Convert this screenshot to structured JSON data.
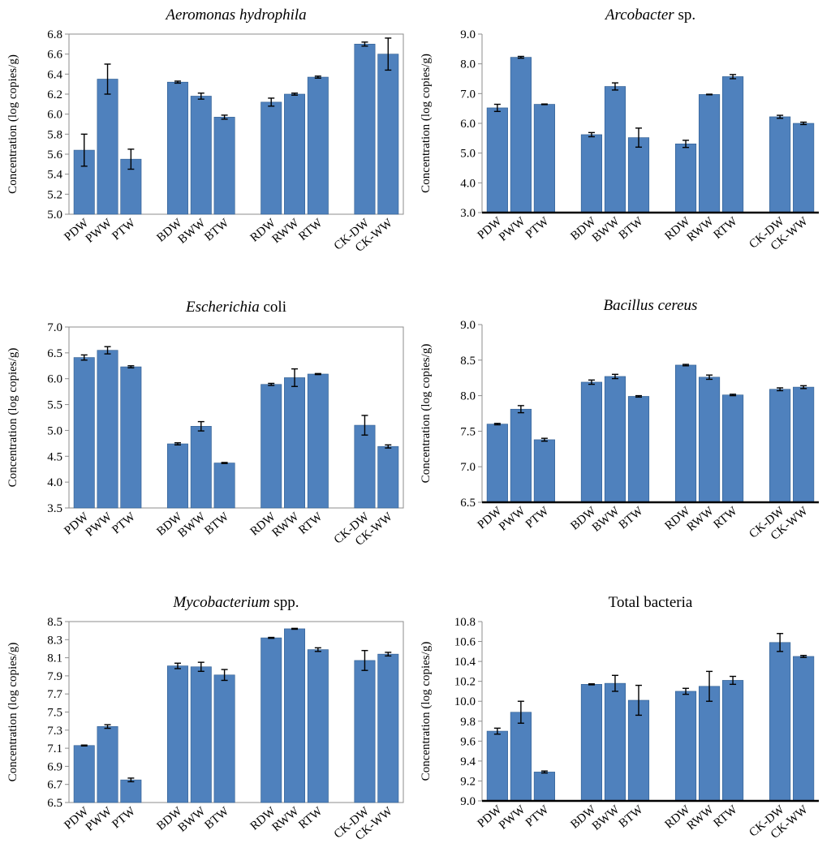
{
  "colors": {
    "bar": "#4f81bd",
    "bar_outline": "#2e5c8f",
    "axis": "#000000",
    "frame": "#8c8c8c"
  },
  "y_axis_label": "Concentration (log copies/g)",
  "chart_data": [
    {
      "type": "bar",
      "title": "Aeromonas hydrophila",
      "title_style": "italic",
      "ylabel": "Concentration (log copies/g)",
      "ylim": [
        5.0,
        6.8
      ],
      "yticks": [
        "5.0",
        "5.2",
        "5.4",
        "5.6",
        "5.8",
        "6.0",
        "6.2",
        "6.4",
        "6.6",
        "6.8"
      ],
      "categories": [
        "PDW",
        "PWW",
        "PTW",
        "BDW",
        "BWW",
        "BTW",
        "RDW",
        "RWW",
        "RTW",
        "CK-DW",
        "CK-WW"
      ],
      "values": [
        5.64,
        6.35,
        5.55,
        6.32,
        6.18,
        5.97,
        6.12,
        6.2,
        6.37,
        6.7,
        6.6
      ],
      "errors": [
        0.16,
        0.15,
        0.1,
        0.01,
        0.03,
        0.02,
        0.04,
        0.01,
        0.01,
        0.02,
        0.16
      ]
    },
    {
      "type": "bar",
      "title": "Arcobacter",
      "title_suffix": " sp.",
      "title_style": "italic",
      "ylabel": "Concentration (log copies/g)",
      "ylim": [
        3.0,
        9.0
      ],
      "yticks": [
        "3.0",
        "4.0",
        "5.0",
        "6.0",
        "7.0",
        "8.0",
        "9.0"
      ],
      "categories": [
        "PDW",
        "PWW",
        "PTW",
        "BDW",
        "BWW",
        "BTW",
        "RDW",
        "RWW",
        "RTW",
        "CK-DW",
        "CK-WW"
      ],
      "values": [
        6.52,
        8.22,
        6.64,
        5.62,
        7.24,
        5.52,
        5.31,
        6.97,
        7.57,
        6.22,
        6.0
      ],
      "errors": [
        0.12,
        0.03,
        0.01,
        0.07,
        0.12,
        0.32,
        0.12,
        0.01,
        0.07,
        0.05,
        0.04
      ]
    },
    {
      "type": "bar",
      "title": "Escherichia",
      "title_suffix": " coli",
      "title_style": "italic",
      "ylabel": "Concentration (log copies/g)",
      "ylim": [
        3.5,
        7.0
      ],
      "yticks": [
        "3.5",
        "4.0",
        "4.5",
        "5.0",
        "5.5",
        "6.0",
        "6.5",
        "7.0"
      ],
      "categories": [
        "PDW",
        "PWW",
        "PTW",
        "BDW",
        "BWW",
        "BTW",
        "RDW",
        "RWW",
        "RTW",
        "CK-DW",
        "CK-WW"
      ],
      "values": [
        6.41,
        6.55,
        6.23,
        4.74,
        5.08,
        4.37,
        5.89,
        6.02,
        6.09,
        5.1,
        4.69
      ],
      "errors": [
        0.05,
        0.07,
        0.02,
        0.02,
        0.09,
        0.01,
        0.02,
        0.17,
        0.01,
        0.19,
        0.03
      ]
    },
    {
      "type": "bar",
      "title": "Bacillus cereus",
      "title_style": "italic",
      "ylabel": "Concentration (log copies/g)",
      "ylim": [
        6.5,
        9.0
      ],
      "yticks": [
        "6.5",
        "7.0",
        "7.5",
        "8.0",
        "8.5",
        "9.0"
      ],
      "categories": [
        "PDW",
        "PWW",
        "PTW",
        "BDW",
        "BWW",
        "BTW",
        "RDW",
        "RWW",
        "RTW",
        "CK-DW",
        "CK-WW"
      ],
      "values": [
        7.6,
        7.81,
        7.38,
        8.19,
        8.27,
        7.99,
        8.43,
        8.26,
        8.01,
        8.09,
        8.12
      ],
      "errors": [
        0.01,
        0.05,
        0.02,
        0.03,
        0.03,
        0.01,
        0.01,
        0.03,
        0.01,
        0.02,
        0.02
      ]
    },
    {
      "type": "bar",
      "title": "Mycobacterium",
      "title_suffix": " spp.",
      "title_style": "italic",
      "ylabel": "Concentration (log copies/g)",
      "ylim": [
        6.5,
        8.5
      ],
      "yticks": [
        "6.5",
        "6.7",
        "6.9",
        "7.1",
        "7.3",
        "7.5",
        "7.7",
        "7.9",
        "8.1",
        "8.3",
        "8.5"
      ],
      "categories": [
        "PDW",
        "PWW",
        "PTW",
        "BDW",
        "BWW",
        "BTW",
        "RDW",
        "RWW",
        "RTW",
        "CK-DW",
        "CK-WW"
      ],
      "values": [
        7.13,
        7.34,
        6.75,
        8.01,
        8.0,
        7.91,
        8.32,
        8.42,
        8.19,
        8.07,
        8.14
      ],
      "errors": [
        0.005,
        0.02,
        0.02,
        0.03,
        0.05,
        0.06,
        0.005,
        0.005,
        0.02,
        0.11,
        0.02
      ]
    },
    {
      "type": "bar",
      "title": "Total bacteria",
      "title_style": "normal",
      "ylabel": "Concentration (log copies/g)",
      "ylim": [
        9.0,
        10.8
      ],
      "yticks": [
        "9.0",
        "9.2",
        "9.4",
        "9.6",
        "9.8",
        "10.0",
        "10.2",
        "10.4",
        "10.6",
        "10.8"
      ],
      "categories": [
        "PDW",
        "PWW",
        "PTW",
        "BDW",
        "BWW",
        "BTW",
        "RDW",
        "RWW",
        "RTW",
        "CK-DW",
        "CK-WW"
      ],
      "values": [
        9.7,
        9.89,
        9.29,
        10.17,
        10.18,
        10.01,
        10.1,
        10.15,
        10.21,
        10.59,
        10.45
      ],
      "errors": [
        0.03,
        0.11,
        0.01,
        0.005,
        0.08,
        0.15,
        0.03,
        0.15,
        0.04,
        0.09,
        0.01
      ]
    }
  ]
}
